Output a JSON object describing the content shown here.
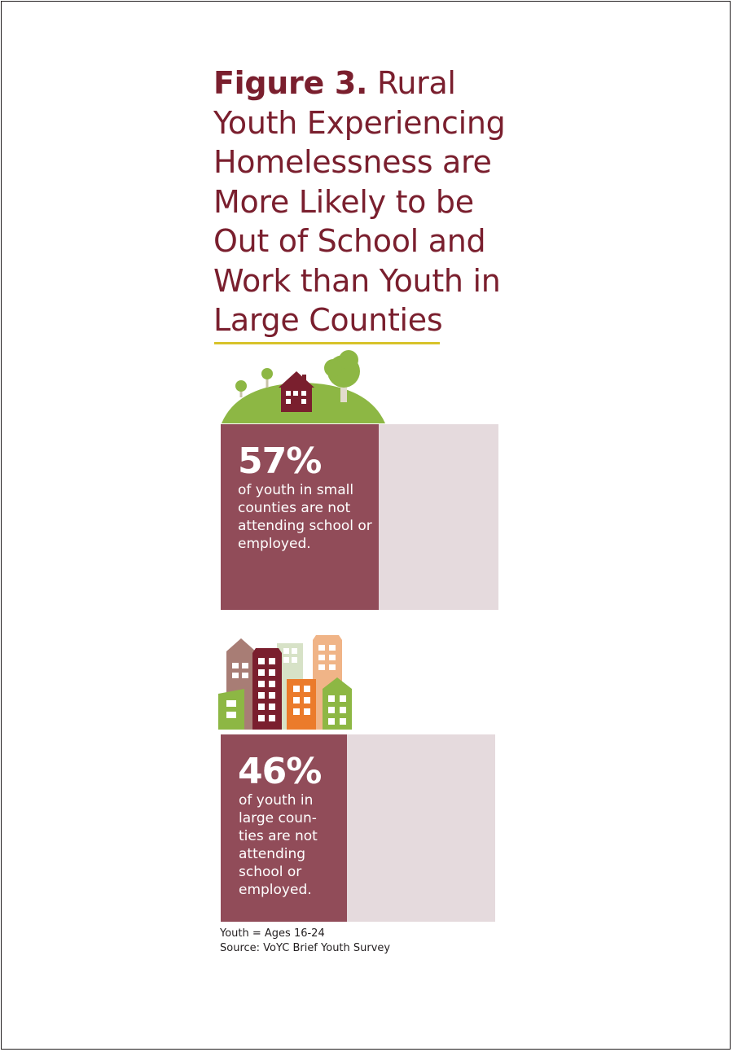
{
  "title": {
    "figure_label": "Figure 3.",
    "text": "Rural Youth Experiencing Homelessness are More Likely to be Out of School and Work than Youth in Large Counties"
  },
  "colors": {
    "title": "#7a1f2e",
    "title_rule": "#d8c32a",
    "bar_fill": "#914c59",
    "bar_track": "#e5dadd"
  },
  "chart_data": {
    "type": "bar",
    "orientation": "horizontal",
    "unit": "%",
    "max": 100,
    "series": [
      {
        "value": 57,
        "value_label": "57%",
        "description": "of youth in small counties are not attending school or employed.",
        "icon": "rural-house-hill-icon"
      },
      {
        "value": 46,
        "value_label": "46%",
        "description": "of youth in large coun- ties are not attending school or employed.",
        "icon": "city-buildings-icon"
      }
    ]
  },
  "footnotes": {
    "definition": "Youth = Ages 16-24",
    "source": "Source: VoYC Brief Youth Survey"
  }
}
